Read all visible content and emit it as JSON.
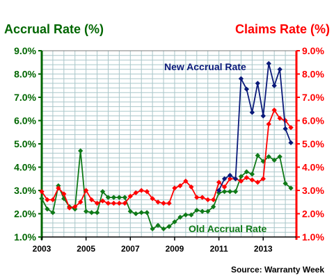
{
  "colors": {
    "left_axis": "#006600",
    "right_axis": "#ff0000",
    "new_accrual": "#0a1a7a",
    "claims": "#ff0000",
    "old_accrual": "#0f7a18",
    "grid": "#a9c6c9"
  },
  "chart_data": {
    "type": "line",
    "title_left": "Accrual Rate (%)",
    "title_right": "Claims Rate (%)",
    "source": "Source: Warranty Week",
    "x_ticks": [
      "2003",
      "2005",
      "2007",
      "2009",
      "2011",
      "2013"
    ],
    "y_ticks": [
      "1.0%",
      "2.0%",
      "3.0%",
      "4.0%",
      "5.0%",
      "6.0%",
      "7.0%",
      "8.0%",
      "9.0%"
    ],
    "y_tick_values": [
      1,
      2,
      3,
      4,
      5,
      6,
      7,
      8,
      9
    ],
    "xlim": [
      2003,
      2014.5
    ],
    "ylim": [
      1,
      9
    ],
    "grid": true,
    "annotations": [
      {
        "text": "New Accrual Rate",
        "series": "new_accrual"
      },
      {
        "text": "Old Accrual Rate",
        "series": "old_accrual"
      }
    ],
    "series": [
      {
        "name": "Old Accrual Rate",
        "key": "old_accrual",
        "x": [
          2003.0,
          2003.25,
          2003.5,
          2003.75,
          2004.0,
          2004.25,
          2004.5,
          2004.75,
          2005.0,
          2005.25,
          2005.5,
          2005.75,
          2006.0,
          2006.25,
          2006.5,
          2006.75,
          2007.0,
          2007.25,
          2007.5,
          2007.75,
          2008.0,
          2008.25,
          2008.5,
          2008.75,
          2009.0,
          2009.25,
          2009.5,
          2009.75,
          2010.0,
          2010.25,
          2010.5,
          2010.75,
          2011.0,
          2011.25,
          2011.5,
          2011.75,
          2012.0,
          2012.25,
          2012.5,
          2012.75,
          2013.0,
          2013.25,
          2013.5,
          2013.75,
          2014.0,
          2014.25
        ],
        "values": [
          2.65,
          2.2,
          2.05,
          3.2,
          2.65,
          2.3,
          2.2,
          4.7,
          2.1,
          2.05,
          2.05,
          2.95,
          2.7,
          2.7,
          2.7,
          2.7,
          2.1,
          2.0,
          2.05,
          2.05,
          1.35,
          1.5,
          1.35,
          1.45,
          1.65,
          1.85,
          1.95,
          1.95,
          2.15,
          2.1,
          2.1,
          2.3,
          2.9,
          2.95,
          2.95,
          2.95,
          3.6,
          3.8,
          3.7,
          4.5,
          4.25,
          4.45,
          4.3,
          4.45,
          3.3,
          3.1
        ]
      },
      {
        "name": "Claims Rate",
        "key": "claims",
        "x": [
          2003.0,
          2003.25,
          2003.5,
          2003.75,
          2004.0,
          2004.25,
          2004.5,
          2004.75,
          2005.0,
          2005.25,
          2005.5,
          2005.75,
          2006.0,
          2006.25,
          2006.5,
          2006.75,
          2007.0,
          2007.25,
          2007.5,
          2007.75,
          2008.0,
          2008.25,
          2008.5,
          2008.75,
          2009.0,
          2009.25,
          2009.5,
          2009.75,
          2010.0,
          2010.25,
          2010.5,
          2010.75,
          2011.0,
          2011.25,
          2011.5,
          2011.75,
          2012.0,
          2012.25,
          2012.5,
          2012.75,
          2013.0,
          2013.25,
          2013.5,
          2013.75,
          2014.0,
          2014.25
        ],
        "values": [
          2.95,
          2.6,
          2.6,
          3.1,
          2.85,
          2.25,
          2.3,
          2.5,
          3.0,
          2.6,
          2.45,
          2.55,
          2.45,
          2.45,
          2.45,
          2.45,
          2.75,
          2.9,
          3.0,
          2.95,
          2.65,
          2.5,
          2.45,
          2.45,
          3.1,
          3.2,
          3.4,
          3.15,
          2.7,
          2.7,
          2.6,
          2.6,
          3.35,
          3.15,
          3.5,
          3.5,
          3.4,
          3.55,
          3.45,
          3.35,
          3.5,
          5.85,
          6.45,
          6.1,
          6.0,
          5.7
        ]
      },
      {
        "name": "New Accrual Rate",
        "key": "new_accrual",
        "x": [
          2011.0,
          2011.25,
          2011.5,
          2011.75,
          2012.0,
          2012.25,
          2012.5,
          2012.75,
          2013.0,
          2013.25,
          2013.5,
          2013.75,
          2014.0,
          2014.25
        ],
        "values": [
          3.0,
          3.5,
          3.65,
          3.5,
          7.8,
          7.35,
          6.35,
          7.6,
          6.2,
          8.45,
          7.5,
          8.2,
          5.65,
          5.05
        ]
      }
    ]
  }
}
